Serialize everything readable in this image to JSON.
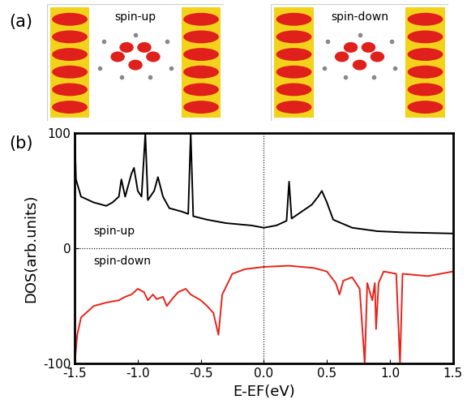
{
  "panel_a": {
    "label": "(a)",
    "images": [
      "spin-up",
      "spin-down"
    ]
  },
  "chart_data": {
    "type": "line",
    "label": "(b)",
    "xlabel": "E-EF(eV)",
    "ylabel": "DOS(arb.units)",
    "xlim": [
      -1.5,
      1.5
    ],
    "xticks": [
      -1.5,
      {
        "value": -1,
        "label": "-1.0"
      },
      -0.5,
      {
        "value": 0,
        "label": "0.0"
      },
      0.5,
      {
        "value": 1,
        "label": "1.0"
      },
      1.5
    ],
    "ylim": [
      -100,
      100
    ],
    "yticks": [
      -100,
      0,
      100
    ],
    "grid": false,
    "series": [
      {
        "name": "spin-up",
        "color": "#000000",
        "x": [
          -1.5,
          -1.49,
          -1.45,
          -1.35,
          -1.25,
          -1.2,
          -1.15,
          -1.13,
          -1.1,
          -1.05,
          -1.03,
          -1.0,
          -0.97,
          -0.94,
          -0.92,
          -0.87,
          -0.84,
          -0.8,
          -0.75,
          -0.65,
          -0.6,
          -0.58,
          -0.56,
          -0.45,
          -0.3,
          -0.1,
          0,
          0.1,
          0.18,
          0.2,
          0.22,
          0.3,
          0.38,
          0.43,
          0.46,
          0.5,
          0.55,
          0.7,
          0.9,
          1.1,
          1.5
        ],
        "values": [
          100,
          60,
          45,
          40,
          37,
          40,
          45,
          60,
          45,
          65,
          70,
          50,
          45,
          100,
          42,
          50,
          62,
          45,
          35,
          32,
          30,
          100,
          28,
          25,
          22,
          20,
          18,
          20,
          24,
          58,
          26,
          32,
          38,
          45,
          50,
          40,
          25,
          18,
          15,
          14,
          13
        ]
      },
      {
        "name": "spin-down",
        "color": "#e8231a",
        "x": [
          -1.5,
          -1.48,
          -1.45,
          -1.35,
          -1.25,
          -1.15,
          -1.1,
          -1.05,
          -1.0,
          -0.95,
          -0.92,
          -0.88,
          -0.85,
          -0.8,
          -0.77,
          -0.72,
          -0.68,
          -0.62,
          -0.58,
          -0.5,
          -0.45,
          -0.4,
          -0.36,
          -0.33,
          -0.25,
          -0.15,
          0,
          0.2,
          0.4,
          0.5,
          0.57,
          0.6,
          0.63,
          0.7,
          0.76,
          0.8,
          0.82,
          0.86,
          0.88,
          0.89,
          0.91,
          0.95,
          1.05,
          1.08,
          1.1,
          1.3,
          1.5
        ],
        "values": [
          -100,
          -75,
          -60,
          -50,
          -47,
          -45,
          -42,
          -40,
          -35,
          -38,
          -45,
          -40,
          -44,
          -42,
          -50,
          -43,
          -38,
          -35,
          -40,
          -45,
          -50,
          -56,
          -75,
          -40,
          -22,
          -18,
          -16,
          -15,
          -17,
          -20,
          -30,
          -40,
          -28,
          -25,
          -35,
          -100,
          -30,
          -45,
          -30,
          -70,
          -30,
          -20,
          -22,
          -100,
          -22,
          -24,
          -20
        ]
      }
    ]
  }
}
